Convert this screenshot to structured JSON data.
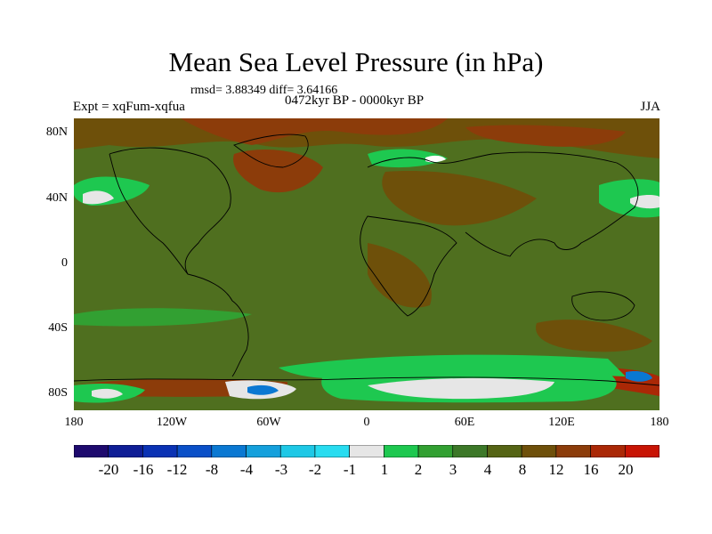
{
  "title": "Mean Sea Level Pressure (in hPa)",
  "stats": "rmsd= 3.88349  diff= 3.64166",
  "period": "0472kyr BP - 0000kyr BP",
  "experiment": "Expt = xqFum-xqfua",
  "season": "JJA",
  "lat_labels": [
    "80N",
    "40N",
    "0",
    "40S",
    "80S"
  ],
  "lon_labels": [
    "180",
    "120W",
    "60W",
    "0",
    "60E",
    "120E",
    "180"
  ],
  "colorbar": {
    "labels": [
      "-20",
      "-16",
      "-12",
      "-8",
      "-4",
      "-3",
      "-2",
      "-1",
      "1",
      "2",
      "3",
      "4",
      "8",
      "12",
      "16",
      "20"
    ],
    "colors": [
      "#1e0a6e",
      "#0f1e96",
      "#0a32b4",
      "#0a50c8",
      "#0a78d2",
      "#14a0dc",
      "#1ec8e6",
      "#28dcf0",
      "#e6e6e6",
      "#1ec850",
      "#32a032",
      "#3c7828",
      "#556414",
      "#6e500a",
      "#8c3c0a",
      "#aa2806",
      "#c81404"
    ]
  },
  "colors": {
    "background_field": "#4f6f1f",
    "coast": "#000000"
  }
}
